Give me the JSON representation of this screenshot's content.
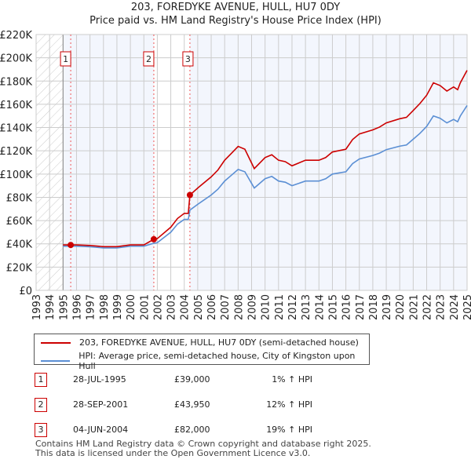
{
  "title": "203, FOREDYKE AVENUE, HULL, HU7 0DY",
  "subtitle": "Price paid vs. HM Land Registry's House Price Index (HPI)",
  "chart_data": {
    "type": "line",
    "xlim": [
      1993,
      2025
    ],
    "ylim": [
      0,
      220000
    ],
    "yticks": [
      0,
      20000,
      40000,
      60000,
      80000,
      100000,
      120000,
      140000,
      160000,
      180000,
      200000,
      220000
    ],
    "ytick_labels": [
      "£0",
      "£20K",
      "£40K",
      "£60K",
      "£80K",
      "£100K",
      "£120K",
      "£140K",
      "£160K",
      "£180K",
      "£200K",
      "£220K"
    ],
    "xtick_labels": [
      "1993",
      "1994",
      "1995",
      "1996",
      "1997",
      "1998",
      "1999",
      "2000",
      "2001",
      "2002",
      "2003",
      "2004",
      "2005",
      "2006",
      "2007",
      "2008",
      "2009",
      "2010",
      "2011",
      "2012",
      "2013",
      "2014",
      "2015",
      "2016",
      "2017",
      "2018",
      "2019",
      "2020",
      "2021",
      "2022",
      "2023",
      "2024",
      "2025"
    ],
    "grid": true,
    "series": [
      {
        "name": "203, FOREDYKE AVENUE, HULL, HU7 0DY (semi-detached house)",
        "color": "#cc0000",
        "x": [
          1995,
          1996,
          1997,
          1998,
          1999,
          2000,
          2001,
          2001.74,
          2002,
          2003,
          2003.5,
          2004,
          2004.3,
          2004.42,
          2005,
          2006,
          2006.5,
          2007,
          2007.5,
          2008,
          2008.5,
          2009,
          2009.2,
          2010,
          2010.5,
          2011,
          2011.5,
          2012,
          2013,
          2014,
          2014.5,
          2015,
          2016,
          2016.5,
          2017,
          2018,
          2018.5,
          2019,
          2020,
          2020.5,
          2021,
          2021.5,
          2022,
          2022.5,
          2023,
          2023.5,
          2024,
          2024.3,
          2024.5,
          2025
        ],
        "y": [
          39100,
          39100,
          38600,
          37600,
          37600,
          39100,
          39100,
          43950,
          44500,
          54300,
          61800,
          66200,
          66200,
          82000,
          88000,
          97600,
          103500,
          111900,
          117800,
          123800,
          121400,
          109500,
          104700,
          114200,
          116600,
          111900,
          110700,
          107100,
          111900,
          111900,
          114200,
          119000,
          121400,
          129700,
          134500,
          138000,
          140400,
          144000,
          147600,
          148800,
          154700,
          160700,
          167800,
          178500,
          176100,
          171400,
          174900,
          172600,
          178500,
          189200
        ]
      },
      {
        "name": "HPI: Average price, semi-detached house, City of Kingston upon Hull",
        "color": "#5b8fd4",
        "x": [
          1995,
          1996,
          1997,
          1998,
          1999,
          2000,
          2001,
          2001.74,
          2002,
          2003,
          2003.5,
          2004,
          2004.3,
          2004.42,
          2005,
          2006,
          2006.5,
          2007,
          2007.5,
          2008,
          2008.5,
          2009,
          2009.2,
          2010,
          2010.5,
          2011,
          2011.5,
          2012,
          2013,
          2014,
          2014.5,
          2015,
          2016,
          2016.5,
          2017,
          2018,
          2018.5,
          2019,
          2020,
          2020.5,
          2021,
          2021.5,
          2022,
          2022.5,
          2023,
          2023.5,
          2024,
          2024.3,
          2024.5,
          2025
        ],
        "y": [
          38000,
          38000,
          37500,
          36500,
          36500,
          38000,
          38000,
          40500,
          41000,
          50000,
          57000,
          61000,
          61000,
          69000,
          74000,
          82000,
          87000,
          94000,
          99000,
          104000,
          102000,
          92000,
          88000,
          96000,
          98000,
          94000,
          93000,
          90000,
          94000,
          94000,
          96000,
          100000,
          102000,
          109000,
          113000,
          116000,
          118000,
          121000,
          124000,
          125000,
          130000,
          135000,
          141000,
          150000,
          148000,
          144000,
          147000,
          145000,
          150000,
          159000
        ]
      }
    ],
    "sales": [
      {
        "label": "1",
        "x": 1995.57,
        "y": 39000
      },
      {
        "label": "2",
        "x": 2001.74,
        "y": 43950
      },
      {
        "label": "3",
        "x": 2004.42,
        "y": 82000
      }
    ]
  },
  "legend": [
    "203, FOREDYKE AVENUE, HULL, HU7 0DY (semi-detached house)",
    "HPI: Average price, semi-detached house, City of Kingston upon Hull"
  ],
  "transactions": [
    {
      "num": "1",
      "date": "28-JUL-1995",
      "price": "£39,000",
      "hpi": "1% ↑ HPI"
    },
    {
      "num": "2",
      "date": "28-SEP-2001",
      "price": "£43,950",
      "hpi": "12% ↑ HPI"
    },
    {
      "num": "3",
      "date": "04-JUN-2004",
      "price": "£82,000",
      "hpi": "19% ↑ HPI"
    }
  ],
  "footer": [
    "Contains HM Land Registry data © Crown copyright and database right 2025.",
    "This data is licensed under the Open Government Licence v3.0."
  ]
}
